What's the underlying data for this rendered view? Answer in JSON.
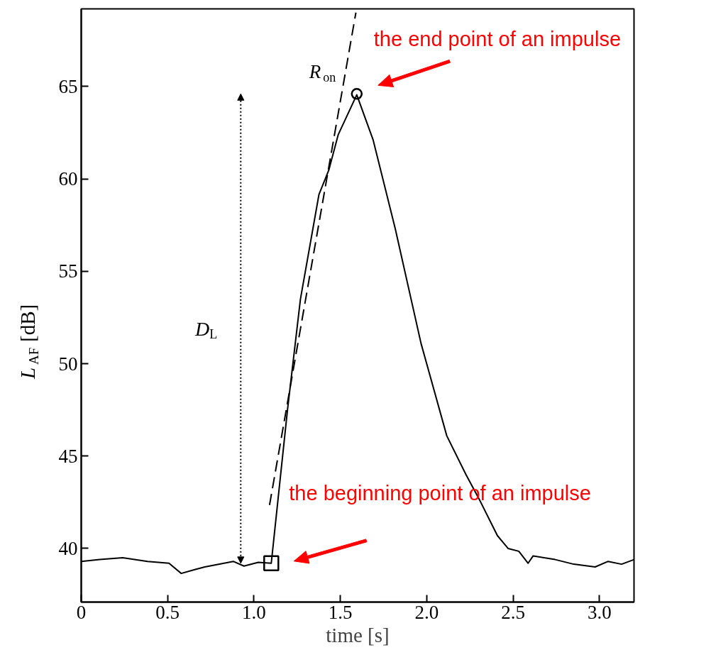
{
  "chart_data": {
    "type": "line",
    "xlabel": "time [s]",
    "ylabel": "L$_{AF}$ [dB]",
    "xlim": [
      0,
      3.2
    ],
    "ylim": [
      37.1,
      69.2
    ],
    "xticks": [
      0,
      0.5,
      {
        "value": 1,
        "label": "1.0"
      },
      1.5,
      {
        "value": 2,
        "label": "2.0"
      },
      2.5,
      {
        "value": 3,
        "label": "3.0"
      }
    ],
    "yticks": [
      40,
      45,
      50,
      55,
      60,
      65
    ],
    "series": [
      {
        "color": "#000000",
        "line_style": "solid",
        "x": [
          0,
          0.107,
          0.24,
          0.384,
          0.508,
          0.579,
          0.653,
          0.715,
          0.88,
          0.942,
          1.025,
          1.1,
          1.194,
          1.269,
          1.376,
          1.434,
          1.488,
          1.595,
          1.69,
          1.818,
          1.967,
          2.116,
          2.227,
          2.302,
          2.409,
          2.471,
          2.533,
          2.587,
          2.616,
          2.744,
          2.851,
          2.975,
          3.05,
          3.128,
          3.2
        ],
        "values": [
          39.3,
          39.4,
          39.5,
          39.3,
          39.2,
          38.65,
          38.85,
          39.0,
          39.3,
          39.05,
          39.25,
          39.2,
          47.5,
          53.5,
          59.15,
          60.5,
          62.4,
          64.55,
          62.1,
          57.3,
          51.1,
          46.1,
          44.0,
          42.7,
          40.7,
          40.0,
          39.85,
          39.2,
          39.6,
          39.4,
          39.15,
          39.0,
          39.3,
          39.15,
          39.4
        ]
      },
      {
        "type": "line",
        "name": "R$_{on}$",
        "color": "#000000",
        "line_style": "dashed",
        "x": [
          1.09,
          1.59
        ],
        "values": [
          42.35,
          69.0
        ]
      },
      {
        "type": "scatter",
        "marker": "square",
        "color": "#000000",
        "x": [
          1.1
        ],
        "values": [
          39.2
        ]
      },
      {
        "type": "scatter",
        "marker": "circle",
        "color": "#000000",
        "x": [
          1.595
        ],
        "values": [
          64.6
        ]
      }
    ],
    "annotations": [
      "D$_{L}$",
      {
        "text": "the end point of an impulse",
        "x": 1.595,
        "y": 64.6
      },
      {
        "text": "the beginning point of an impulse",
        "x": 1.1,
        "y": 39.2
      }
    ]
  }
}
